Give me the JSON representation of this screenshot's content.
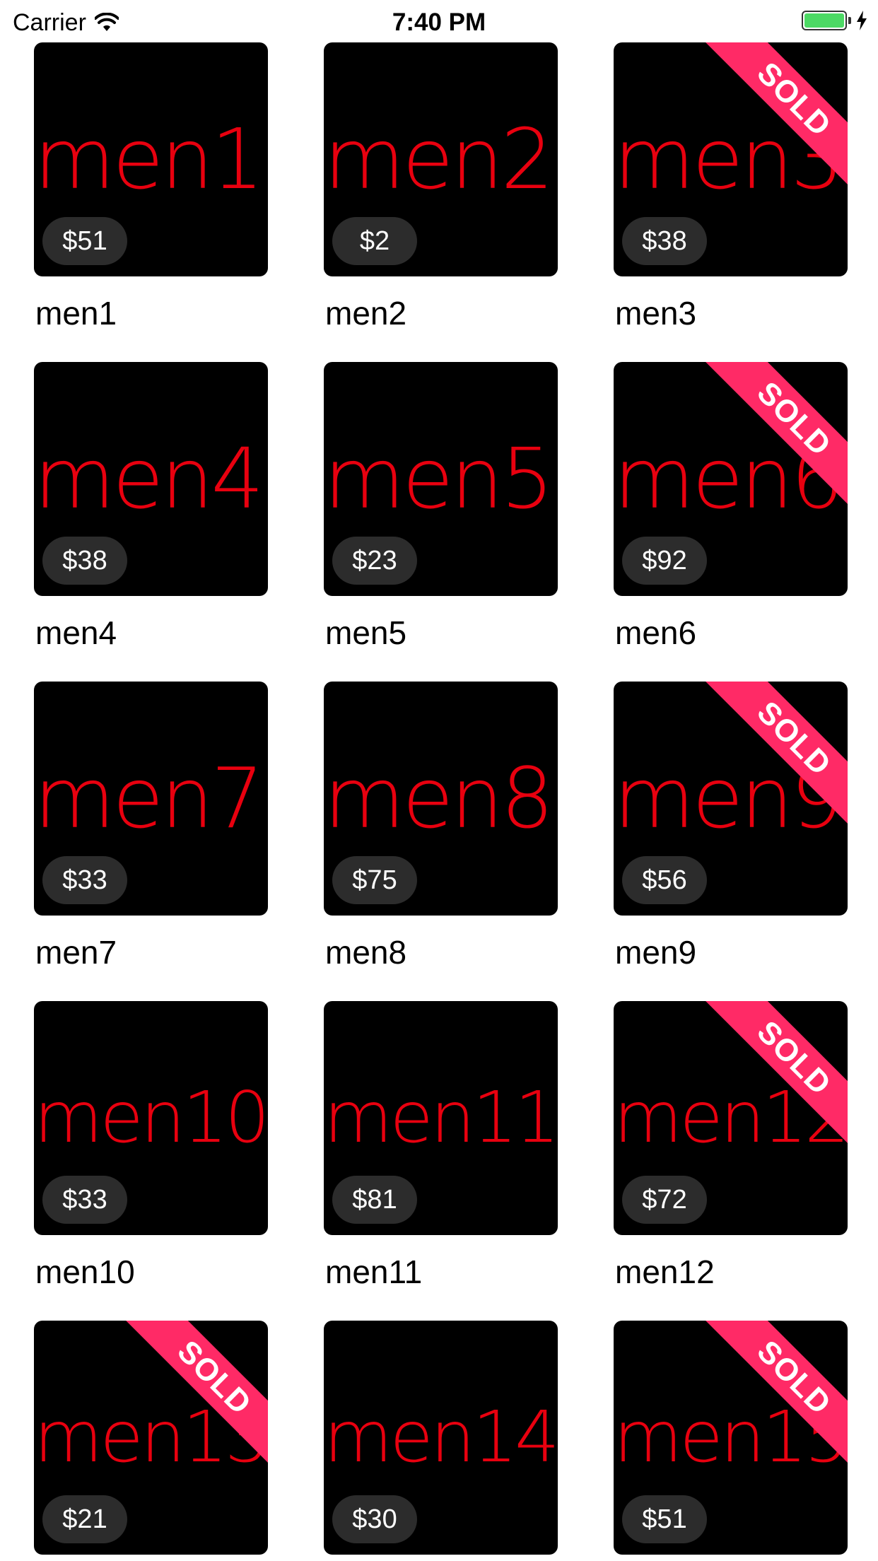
{
  "status_bar": {
    "carrier": "Carrier",
    "time": "7:40 PM",
    "battery_color": "#4cd964"
  },
  "accent_colors": {
    "tile_background": "#000000",
    "label_red": "#e8000f",
    "sold_ribbon": "#ff2a66",
    "price_pill": "#2c2c2c"
  },
  "products": [
    {
      "label": "men1",
      "name": "men1",
      "price": "$51",
      "sold": false
    },
    {
      "label": "men2",
      "name": "men2",
      "price": "$2",
      "sold": false
    },
    {
      "label": "men3",
      "name": "men3",
      "price": "$38",
      "sold": true
    },
    {
      "label": "men4",
      "name": "men4",
      "price": "$38",
      "sold": false
    },
    {
      "label": "men5",
      "name": "men5",
      "price": "$23",
      "sold": false
    },
    {
      "label": "men6",
      "name": "men6",
      "price": "$92",
      "sold": true
    },
    {
      "label": "men7",
      "name": "men7",
      "price": "$33",
      "sold": false
    },
    {
      "label": "men8",
      "name": "men8",
      "price": "$75",
      "sold": false
    },
    {
      "label": "men9",
      "name": "men9",
      "price": "$56",
      "sold": true
    },
    {
      "label": "men10",
      "name": "men10",
      "price": "$33",
      "sold": false
    },
    {
      "label": "men11",
      "name": "men11",
      "price": "$81",
      "sold": false
    },
    {
      "label": "men12",
      "name": "men12",
      "price": "$72",
      "sold": true
    },
    {
      "label": "men13",
      "name": "men13",
      "price": "$21",
      "sold": true
    },
    {
      "label": "men14",
      "name": "men14",
      "price": "$30",
      "sold": false
    },
    {
      "label": "men15",
      "name": "men15",
      "price": "$51",
      "sold": true
    }
  ],
  "sold_label": "SOLD"
}
